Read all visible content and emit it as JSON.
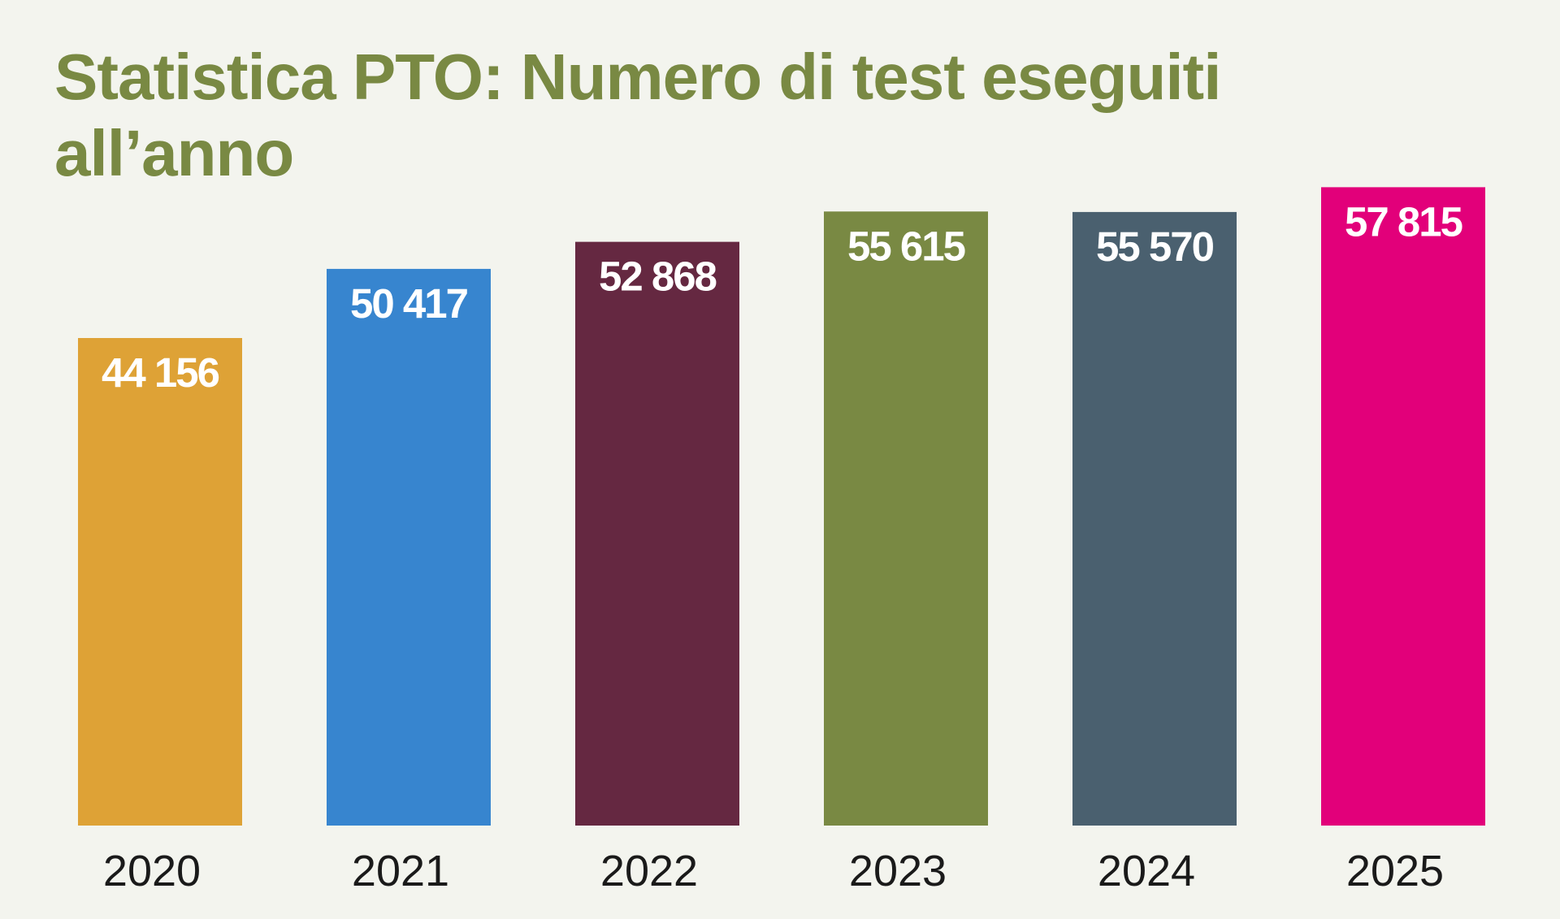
{
  "chart_data": {
    "type": "bar",
    "title": "Statistica PTO: Numero di test eseguiti all’anno",
    "xlabel": "",
    "ylabel": "",
    "categories": [
      "2020",
      "2021",
      "2022",
      "2023",
      "2024",
      "2025"
    ],
    "values": [
      44156,
      50417,
      52868,
      55615,
      55570,
      57815
    ],
    "value_labels": [
      "44 156",
      "50 417",
      "52 868",
      "55 615",
      "55 570",
      "57 815"
    ],
    "colors": [
      "#dea236",
      "#3785cf",
      "#652841",
      "#798943",
      "#4a606f",
      "#e2007a"
    ],
    "ylim": [
      0,
      58000
    ],
    "grid": false,
    "legend": "none"
  }
}
